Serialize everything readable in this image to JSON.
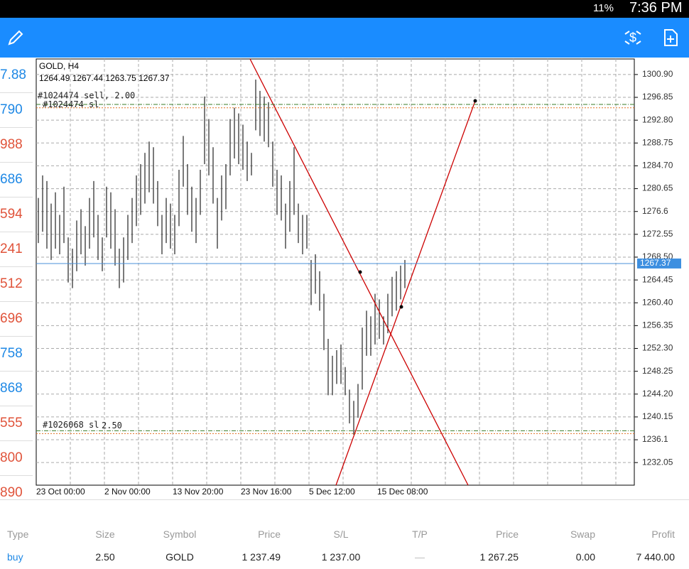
{
  "status_bar": {
    "battery": "11%",
    "time": "7:36 PM"
  },
  "side_prices": [
    {
      "text": "7.88",
      "color": "#1e88e5"
    },
    {
      "text": "790",
      "color": "#1e88e5"
    },
    {
      "text": "988",
      "color": "#e0533a"
    },
    {
      "text": "686",
      "color": "#1e88e5"
    },
    {
      "text": "594",
      "color": "#e0533a"
    },
    {
      "text": "241",
      "color": "#e0533a"
    },
    {
      "text": "512",
      "color": "#e0533a"
    },
    {
      "text": "696",
      "color": "#e0533a"
    },
    {
      "text": "758",
      "color": "#1e88e5"
    },
    {
      "text": "868",
      "color": "#1e88e5"
    },
    {
      "text": "555",
      "color": "#e0533a"
    },
    {
      "text": "800",
      "color": "#e0533a"
    },
    {
      "text": "890",
      "color": "#e0533a"
    }
  ],
  "chart_data": {
    "type": "ohlc",
    "title": "GOLD, H4",
    "subtitle": "1264.49 1267.44 1263.75 1267.37",
    "categories": [
      "23 Oct 00:00",
      "2 Nov 00:00",
      "13 Nov 20:00",
      "23 Nov 16:00",
      "5 Dec 12:00",
      "15 Dec 08:00"
    ],
    "highs": [
      1279,
      1283,
      1282,
      1278,
      1280,
      1276,
      1281,
      1272,
      1270,
      1275,
      1277,
      1274,
      1279,
      1282,
      1276,
      1272,
      1281,
      1280,
      1277,
      1270,
      1272,
      1276,
      1279,
      1283,
      1285,
      1287,
      1289,
      1288,
      1282,
      1276,
      1279,
      1278,
      1276,
      1284,
      1290,
      1285,
      1281,
      1279,
      1284,
      1297,
      1293,
      1288,
      1279,
      1283,
      1285,
      1293,
      1295,
      1294,
      1292,
      1289,
      1287,
      1300,
      1298,
      1297,
      1296,
      1289,
      1284,
      1283,
      1278,
      1282,
      1288,
      1278,
      1276,
      1276,
      1268,
      1269,
      1266,
      1262,
      1254,
      1251,
      1252,
      1253,
      1249,
      1245,
      1243,
      1246,
      1256,
      1259,
      1258,
      1262,
      1261,
      1258,
      1262,
      1265,
      1266,
      1267,
      1268
    ],
    "lows": [
      1271,
      1273,
      1270,
      1268,
      1270,
      1269,
      1271,
      1264,
      1263,
      1266,
      1269,
      1267,
      1270,
      1272,
      1268,
      1266,
      1272,
      1270,
      1267,
      1263,
      1264,
      1268,
      1271,
      1274,
      1276,
      1278,
      1280,
      1278,
      1274,
      1269,
      1271,
      1270,
      1269,
      1274,
      1281,
      1276,
      1273,
      1271,
      1276,
      1285,
      1283,
      1278,
      1270,
      1275,
      1277,
      1283,
      1286,
      1285,
      1284,
      1282,
      1283,
      1291,
      1290,
      1289,
      1288,
      1281,
      1276,
      1275,
      1270,
      1273,
      1276,
      1271,
      1269,
      1270,
      1260,
      1262,
      1259,
      1252,
      1244,
      1244,
      1246,
      1246,
      1244,
      1239,
      1237,
      1240,
      1245,
      1251,
      1251,
      1253,
      1254,
      1253,
      1255,
      1258,
      1259,
      1261,
      1263
    ],
    "color": "#222222",
    "ylim": [
      1228.04,
      1303.66
    ],
    "yticks": [
      {
        "value": 1300.9,
        "label": "1300.90"
      },
      1296.85,
      {
        "value": 1292.8,
        "label": "1292.80"
      },
      1288.75,
      {
        "value": 1284.7,
        "label": "1284.70"
      },
      1280.65,
      1276.6,
      1272.55,
      {
        "value": 1268.5,
        "label": "1268.50"
      },
      1264.45,
      {
        "value": 1260.4,
        "label": "1260.40"
      },
      1256.35,
      {
        "value": 1252.3,
        "label": "1252.30"
      },
      1248.25,
      {
        "value": 1244.2,
        "label": "1244.20"
      },
      1240.15,
      1236.1,
      1232.05
    ],
    "grid": true,
    "current_price": 1267.37,
    "levels": [
      {
        "label": "#1024474 sell, 2.00",
        "value": 1295.6,
        "color": "#3a7d2a"
      },
      {
        "label": "#1024474 sl",
        "value": 1295.0,
        "color": "#e07020"
      },
      {
        "label": "#1026068 sl",
        "value": 1237.7,
        "color": "#3a7d2a"
      },
      {
        "label": "2.50",
        "value": 1237.2,
        "color": "#e07020"
      }
    ]
  },
  "table": {
    "headers": [
      "Type",
      "Size",
      "Symbol",
      "Price",
      "S/L",
      "T/P",
      "Price",
      "Swap",
      "Profit"
    ],
    "rows": [
      [
        "buy",
        "2.50",
        "GOLD",
        "1 237.49",
        "1 237.00",
        "—",
        "1 267.25",
        "0.00",
        "7 440.00"
      ]
    ]
  }
}
